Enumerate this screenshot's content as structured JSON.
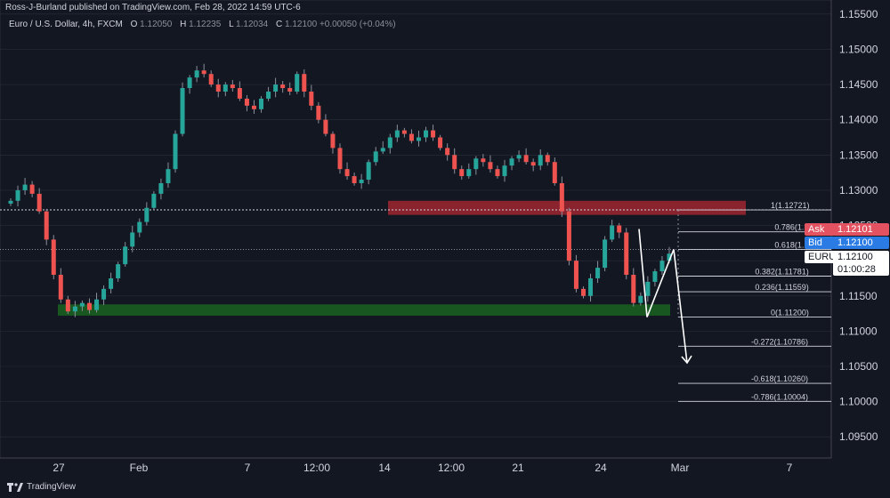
{
  "header": {
    "publisher": "Ross-J-Burland published on TradingView.com, Feb 28, 2022 14:59 UTC-6",
    "symbol": "Euro / U.S. Dollar, 4h, FXCM",
    "o_label": "O",
    "o_value": "1.12050",
    "h_label": "H",
    "h_value": "1.12235",
    "l_label": "L",
    "l_value": "1.12034",
    "c_label": "C",
    "c_value": "1.12100",
    "change": "+0.00050 (+0.04%)"
  },
  "price_tags": {
    "ask_label": "Ask",
    "ask_value": "1.12101",
    "bid_label": "Bid",
    "bid_value": "1.12100",
    "symbol_label": "EURUSD",
    "last_value": "1.12100",
    "countdown": "01:00:28"
  },
  "footer": {
    "brand": "TradingView"
  },
  "colors": {
    "background": "#131722",
    "up": "#26a69a",
    "down": "#ef5350",
    "resistance_zone": "#b22833",
    "support_zone": "#1b5e20",
    "grid": "#2a2e39"
  },
  "chart_data": {
    "type": "candlestick",
    "timeframe": "4h",
    "ylim": [
      1.092,
      1.157
    ],
    "y_ticks": [
      "1.15500",
      "1.15000",
      "1.14500",
      "1.14000",
      "1.13500",
      "1.13000",
      "1.12500",
      "1.12000",
      "1.11500",
      "1.11000",
      "1.10500",
      "1.10000",
      "1.09500"
    ],
    "x_ticks": [
      "27",
      "Feb",
      "7",
      "12:00",
      "14",
      "12:00",
      "21",
      "24",
      "Mar",
      "7"
    ],
    "resistance_zone": [
      1.1265,
      1.1285
    ],
    "support_zone": [
      1.1122,
      1.1138
    ],
    "horizontal_line": 1.12721,
    "fibonacci": [
      {
        "ratio": "1",
        "value": 1.12721,
        "label": "1(1.12721)"
      },
      {
        "ratio": "0.786",
        "value": 1.1241,
        "label": "0.786(1.1"
      },
      {
        "ratio": "0.618",
        "value": 1.1216,
        "label": "0.618(1.1"
      },
      {
        "ratio": "0.382",
        "value": 1.11781,
        "label": "0.382(1.11781)"
      },
      {
        "ratio": "0.236",
        "value": 1.11559,
        "label": "0.236(1.11559)"
      },
      {
        "ratio": "0",
        "value": 1.112,
        "label": "0(1.11200)"
      },
      {
        "ratio": "-0.272",
        "value": 1.10786,
        "label": "-0.272(1.10786)"
      },
      {
        "ratio": "-0.618",
        "value": 1.1026,
        "label": "-0.618(1.10260)"
      },
      {
        "ratio": "-0.786",
        "value": 1.10004,
        "label": "-0.786(1.10004)"
      }
    ],
    "price_path": [
      1.1285,
      1.13,
      1.1308,
      1.1295,
      1.127,
      1.123,
      1.118,
      1.1145,
      1.1128,
      1.1135,
      1.114,
      1.113,
      1.1145,
      1.116,
      1.1175,
      1.1195,
      1.122,
      1.124,
      1.1255,
      1.1275,
      1.1295,
      1.131,
      1.133,
      1.138,
      1.1445,
      1.146,
      1.147,
      1.1465,
      1.145,
      1.144,
      1.145,
      1.1445,
      1.143,
      1.142,
      1.1415,
      1.143,
      1.144,
      1.145,
      1.1445,
      1.144,
      1.1465,
      1.144,
      1.142,
      1.14,
      1.138,
      1.136,
      1.133,
      1.132,
      1.131,
      1.1315,
      1.134,
      1.1355,
      1.136,
      1.1375,
      1.1385,
      1.138,
      1.137,
      1.1375,
      1.1385,
      1.1375,
      1.136,
      1.135,
      1.133,
      1.132,
      1.133,
      1.1345,
      1.134,
      1.133,
      1.132,
      1.1335,
      1.1345,
      1.135,
      1.134,
      1.1335,
      1.135,
      1.134,
      1.131,
      1.127,
      1.12,
      1.116,
      1.115,
      1.1175,
      1.119,
      1.123,
      1.125,
      1.124,
      1.118,
      1.114,
      1.115,
      1.117,
      1.1185,
      1.12,
      1.121
    ],
    "projection_arrows": [
      {
        "from": 1.1245,
        "to": 1.112
      },
      {
        "from": 1.112,
        "to": 1.1216
      },
      {
        "from": 1.1216,
        "to": 1.1055
      }
    ]
  }
}
